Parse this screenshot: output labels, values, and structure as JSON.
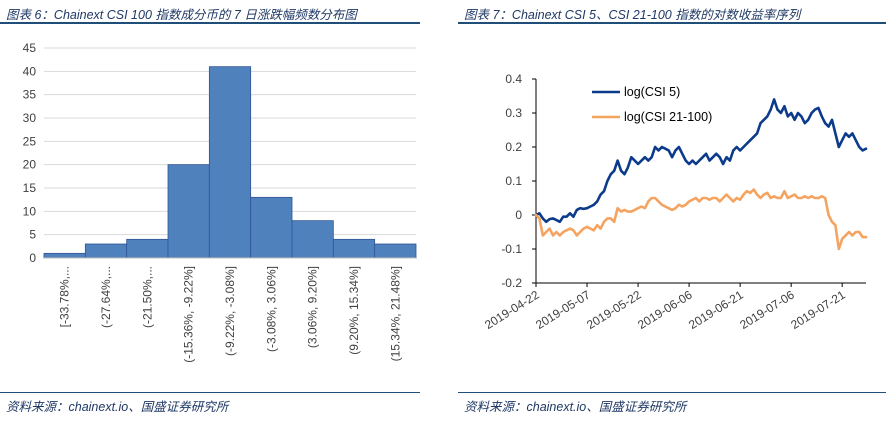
{
  "left_panel": {
    "title": "图表 6：Chainext CSI 100 指数成分币的 7 日涨跌幅频数分布图",
    "source": "资料来源：chainext.io、国盛证券研究所"
  },
  "right_panel": {
    "title": "图表 7：Chainext CSI 5、CSI 21-100 指数的对数收益率序列",
    "source": "资料来源：chainext.io、国盛证券研究所"
  },
  "colors": {
    "bar": "#4f81bd",
    "bar_edge": "#2f5597",
    "line1": "#0d3b8c",
    "line2": "#f4a460",
    "grid": "#d9d9d9",
    "rule": "#1f4e79"
  },
  "chart_data": [
    {
      "type": "bar",
      "title": "",
      "categories": [
        "[-33.78%,...",
        "(-27.64%,...",
        "(-21.50%,...",
        "(-15.36%, -9.22%]",
        "(-9.22%, -3.08%]",
        "(-3.08%, 3.06%]",
        "(3.06%, 9.20%]",
        "(9.20%, 15.34%]",
        "(15.34%, 21.48%]"
      ],
      "values": [
        1,
        3,
        4,
        20,
        41,
        13,
        8,
        4,
        3
      ],
      "ylim": [
        0,
        45
      ],
      "yticks": [
        0,
        5,
        10,
        15,
        20,
        25,
        30,
        35,
        40,
        45
      ],
      "xlabel": "",
      "ylabel": "",
      "grid": true
    },
    {
      "type": "line",
      "title": "",
      "ylim": [
        -0.2,
        0.4
      ],
      "yticks": [
        "-0.2",
        "-0.1",
        "0",
        "0.1",
        "0.2",
        "0.3",
        "0.4"
      ],
      "xticks": [
        "2019-04-22",
        "2019-05-07",
        "2019-05-22",
        "2019-06-06",
        "2019-06-21",
        "2019-07-06",
        "2019-07-21"
      ],
      "xtick_positions": [
        0,
        15,
        30,
        45,
        60,
        75,
        90
      ],
      "grid": false,
      "legend_position": "top-left",
      "series": [
        {
          "name": "log(CSI 5)",
          "x": [
            0,
            1,
            2,
            3,
            4,
            5,
            6,
            7,
            8,
            9,
            10,
            11,
            12,
            13,
            14,
            15,
            16,
            17,
            18,
            19,
            20,
            21,
            22,
            23,
            24,
            25,
            26,
            27,
            28,
            29,
            30,
            31,
            32,
            33,
            34,
            35,
            36,
            37,
            38,
            39,
            40,
            41,
            42,
            43,
            44,
            45,
            46,
            47,
            48,
            49,
            50,
            51,
            52,
            53,
            54,
            55,
            56,
            57,
            58,
            59,
            60,
            61,
            62,
            63,
            64,
            65,
            66,
            67,
            68,
            69,
            70,
            71,
            72,
            73,
            74,
            75,
            76,
            77,
            78,
            79,
            80,
            81,
            82,
            83,
            84,
            85,
            86,
            87,
            88,
            89,
            90,
            91,
            92,
            93,
            94,
            95,
            96,
            97
          ],
          "values": [
            0.0,
            0.005,
            -0.01,
            -0.02,
            -0.012,
            -0.01,
            -0.015,
            -0.02,
            -0.005,
            -0.005,
            0.005,
            -0.005,
            0.015,
            0.02,
            0.018,
            0.02,
            0.025,
            0.03,
            0.04,
            0.06,
            0.07,
            0.1,
            0.12,
            0.13,
            0.16,
            0.13,
            0.12,
            0.14,
            0.17,
            0.16,
            0.15,
            0.16,
            0.17,
            0.16,
            0.17,
            0.2,
            0.19,
            0.2,
            0.195,
            0.19,
            0.17,
            0.19,
            0.2,
            0.18,
            0.16,
            0.15,
            0.16,
            0.15,
            0.16,
            0.17,
            0.18,
            0.16,
            0.17,
            0.18,
            0.17,
            0.15,
            0.17,
            0.16,
            0.19,
            0.2,
            0.19,
            0.2,
            0.21,
            0.22,
            0.23,
            0.24,
            0.27,
            0.28,
            0.29,
            0.31,
            0.34,
            0.31,
            0.3,
            0.32,
            0.29,
            0.3,
            0.28,
            0.3,
            0.29,
            0.27,
            0.28,
            0.3,
            0.31,
            0.315,
            0.29,
            0.27,
            0.26,
            0.28,
            0.24,
            0.2,
            0.22,
            0.24,
            0.23,
            0.24,
            0.22,
            0.2,
            0.19,
            0.195
          ]
        },
        {
          "name": "log(CSI 21-100)",
          "x": [
            0,
            1,
            2,
            3,
            4,
            5,
            6,
            7,
            8,
            9,
            10,
            11,
            12,
            13,
            14,
            15,
            16,
            17,
            18,
            19,
            20,
            21,
            22,
            23,
            24,
            25,
            26,
            27,
            28,
            29,
            30,
            31,
            32,
            33,
            34,
            35,
            36,
            37,
            38,
            39,
            40,
            41,
            42,
            43,
            44,
            45,
            46,
            47,
            48,
            49,
            50,
            51,
            52,
            53,
            54,
            55,
            56,
            57,
            58,
            59,
            60,
            61,
            62,
            63,
            64,
            65,
            66,
            67,
            68,
            69,
            70,
            71,
            72,
            73,
            74,
            75,
            76,
            77,
            78,
            79,
            80,
            81,
            82,
            83,
            84,
            85,
            86,
            87,
            88,
            89,
            90,
            91,
            92,
            93,
            94,
            95,
            96,
            97
          ],
          "values": [
            0.0,
            -0.01,
            -0.06,
            -0.05,
            -0.04,
            -0.06,
            -0.05,
            -0.06,
            -0.05,
            -0.045,
            -0.04,
            -0.045,
            -0.06,
            -0.05,
            -0.04,
            -0.035,
            -0.04,
            -0.045,
            -0.03,
            -0.04,
            -0.02,
            -0.01,
            -0.01,
            -0.02,
            0.02,
            0.01,
            0.015,
            0.01,
            0.01,
            0.015,
            0.02,
            0.025,
            0.02,
            0.04,
            0.05,
            0.05,
            0.04,
            0.03,
            0.025,
            0.02,
            0.015,
            0.02,
            0.03,
            0.025,
            0.03,
            0.04,
            0.045,
            0.05,
            0.04,
            0.05,
            0.05,
            0.045,
            0.05,
            0.05,
            0.04,
            0.05,
            0.06,
            0.05,
            0.04,
            0.05,
            0.045,
            0.06,
            0.07,
            0.065,
            0.075,
            0.06,
            0.05,
            0.06,
            0.065,
            0.05,
            0.055,
            0.05,
            0.05,
            0.07,
            0.05,
            0.055,
            0.06,
            0.05,
            0.05,
            0.055,
            0.05,
            0.055,
            0.05,
            0.05,
            0.055,
            0.05,
            0.0,
            -0.02,
            -0.03,
            -0.1,
            -0.07,
            -0.06,
            -0.05,
            -0.06,
            -0.05,
            -0.05,
            -0.065,
            -0.065
          ]
        }
      ]
    }
  ]
}
